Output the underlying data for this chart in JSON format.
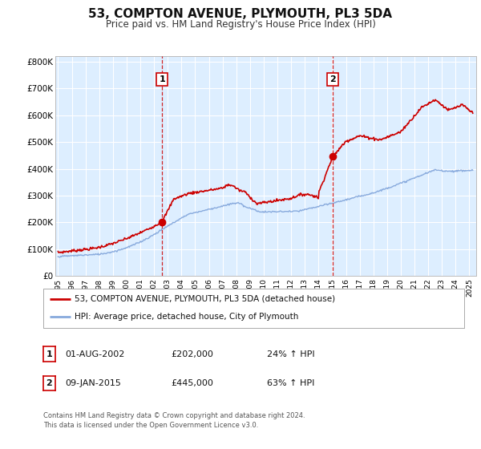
{
  "title": "53, COMPTON AVENUE, PLYMOUTH, PL3 5DA",
  "subtitle": "Price paid vs. HM Land Registry's House Price Index (HPI)",
  "title_fontsize": 11,
  "subtitle_fontsize": 8.5,
  "bg_color": "#ffffff",
  "plot_bg_color": "#ddeeff",
  "grid_color": "#ffffff",
  "ylim": [
    0,
    820000
  ],
  "yticks": [
    0,
    100000,
    200000,
    300000,
    400000,
    500000,
    600000,
    700000,
    800000
  ],
  "ytick_labels": [
    "£0",
    "£100K",
    "£200K",
    "£300K",
    "£400K",
    "£500K",
    "£600K",
    "£700K",
    "£800K"
  ],
  "xlim_start": 1994.8,
  "xlim_end": 2025.5,
  "red_line_color": "#cc0000",
  "blue_line_color": "#88aadd",
  "marker1_x": 2002.583,
  "marker1_y": 202000,
  "marker2_x": 2015.03,
  "marker2_y": 445000,
  "vline1_x": 2002.583,
  "vline2_x": 2015.03,
  "legend_label_red": "53, COMPTON AVENUE, PLYMOUTH, PL3 5DA (detached house)",
  "legend_label_blue": "HPI: Average price, detached house, City of Plymouth",
  "table_row1": [
    "1",
    "01-AUG-2002",
    "£202,000",
    "24% ↑ HPI"
  ],
  "table_row2": [
    "2",
    "09-JAN-2015",
    "£445,000",
    "63% ↑ HPI"
  ],
  "footnote": "Contains HM Land Registry data © Crown copyright and database right 2024.\nThis data is licensed under the Open Government Licence v3.0."
}
